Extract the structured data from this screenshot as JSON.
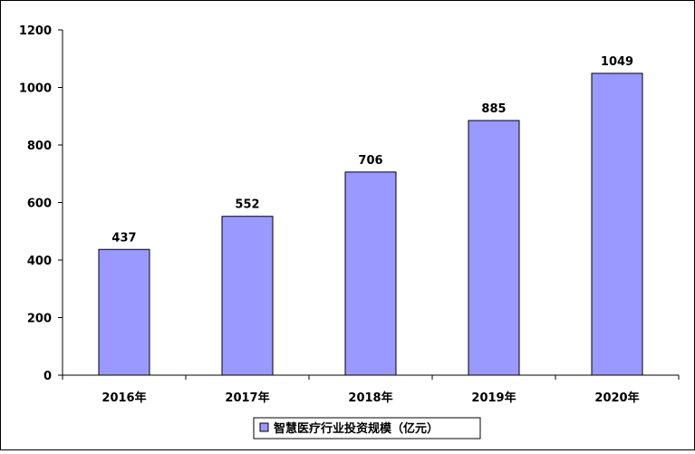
{
  "chart_data": {
    "type": "bar",
    "categories": [
      "2016年",
      "2017年",
      "2018年",
      "2019年",
      "2020年"
    ],
    "series": [
      {
        "name": "智慧医疗行业投资规模（亿元）",
        "values": [
          437,
          552,
          706,
          885,
          1049
        ]
      }
    ],
    "ylim": [
      0,
      1200
    ],
    "yticks": [
      0,
      200,
      400,
      600,
      800,
      1000,
      1200
    ],
    "bar_color": "#9999ff",
    "bar_stroke": "#000000",
    "legend_position": "bottom",
    "grid": false,
    "data_labels": true
  }
}
